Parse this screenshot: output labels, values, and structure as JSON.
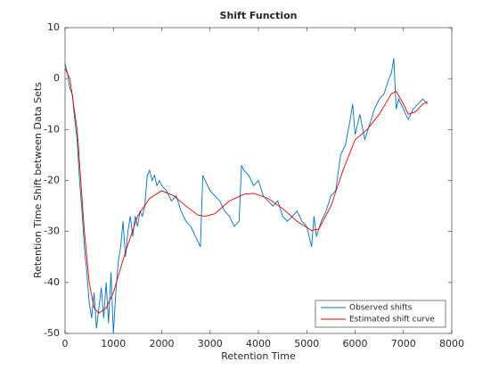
{
  "chart_data": {
    "type": "line",
    "title": "Shift Function",
    "xlabel": "Retention Time",
    "ylabel": "Retention Time Shift between Data Sets",
    "xlim": [
      0,
      8000
    ],
    "ylim": [
      -50,
      10
    ],
    "xticks": [
      0,
      1000,
      2000,
      3000,
      4000,
      5000,
      6000,
      7000,
      8000
    ],
    "yticks": [
      -50,
      -40,
      -30,
      -20,
      -10,
      0,
      10
    ],
    "grid": false,
    "legend": "southeast",
    "series": [
      {
        "name": "Observed shifts",
        "color": "#0072bd",
        "x": [
          0,
          50,
          100,
          150,
          200,
          250,
          300,
          350,
          400,
          450,
          500,
          550,
          600,
          650,
          700,
          750,
          800,
          850,
          900,
          950,
          1000,
          1050,
          1100,
          1150,
          1200,
          1250,
          1300,
          1350,
          1400,
          1450,
          1500,
          1550,
          1600,
          1650,
          1700,
          1750,
          1800,
          1850,
          1900,
          1950,
          2000,
          2100,
          2200,
          2300,
          2400,
          2500,
          2600,
          2700,
          2800,
          2850,
          2900,
          3000,
          3100,
          3200,
          3300,
          3400,
          3500,
          3600,
          3650,
          3700,
          3800,
          3900,
          4000,
          4100,
          4200,
          4300,
          4400,
          4500,
          4600,
          4700,
          4800,
          4900,
          5000,
          5100,
          5150,
          5200,
          5300,
          5400,
          5500,
          5600,
          5700,
          5800,
          5900,
          5950,
          6000,
          6100,
          6200,
          6300,
          6400,
          6500,
          6600,
          6700,
          6750,
          6800,
          6850,
          6900,
          7000,
          7100,
          7200,
          7300,
          7400,
          7500
        ],
        "values": [
          3,
          1,
          -2,
          -3,
          -8,
          -12,
          -20,
          -26,
          -33,
          -38,
          -44,
          -47,
          -42,
          -49,
          -45,
          -41,
          -47,
          -40,
          -48,
          -38,
          -50,
          -42,
          -36,
          -33,
          -28,
          -35,
          -30,
          -27,
          -31,
          -27,
          -29,
          -26,
          -27,
          -25,
          -19,
          -18,
          -20,
          -19,
          -21,
          -20,
          -21,
          -22,
          -24,
          -23,
          -26,
          -28,
          -29,
          -31,
          -33,
          -19,
          -20,
          -22,
          -23,
          -24,
          -26,
          -27,
          -29,
          -28,
          -17,
          -18,
          -19,
          -21,
          -20,
          -23,
          -24,
          -25,
          -24,
          -27,
          -28,
          -27,
          -26,
          -28,
          -29,
          -33,
          -27,
          -31,
          -28,
          -26,
          -23,
          -22,
          -15,
          -13,
          -8,
          -5,
          -11,
          -7,
          -12,
          -9,
          -6,
          -4,
          -3,
          0,
          1,
          4,
          -6,
          -4,
          -6,
          -8,
          -6,
          -5,
          -4,
          -5
        ]
      },
      {
        "name": "Estimated shift curve",
        "color": "#e00000",
        "x": [
          0,
          100,
          250,
          400,
          500,
          600,
          700,
          850,
          1000,
          1250,
          1500,
          1750,
          2000,
          2250,
          2500,
          2750,
          2900,
          3100,
          3400,
          3700,
          3900,
          4200,
          4500,
          4800,
          5100,
          5250,
          5500,
          5750,
          6000,
          6250,
          6500,
          6750,
          6850,
          7000,
          7100,
          7250,
          7400,
          7500
        ],
        "values": [
          2,
          0,
          -10,
          -30,
          -40,
          -45,
          -46,
          -45,
          -42,
          -34,
          -27,
          -23.5,
          -22,
          -23,
          -25,
          -26.8,
          -27,
          -26.5,
          -24,
          -22.7,
          -22.5,
          -23.5,
          -25.5,
          -28,
          -29.8,
          -29.5,
          -25,
          -18,
          -12,
          -10,
          -7,
          -3,
          -2.5,
          -5,
          -7,
          -6.5,
          -5,
          -4.5
        ]
      }
    ]
  }
}
